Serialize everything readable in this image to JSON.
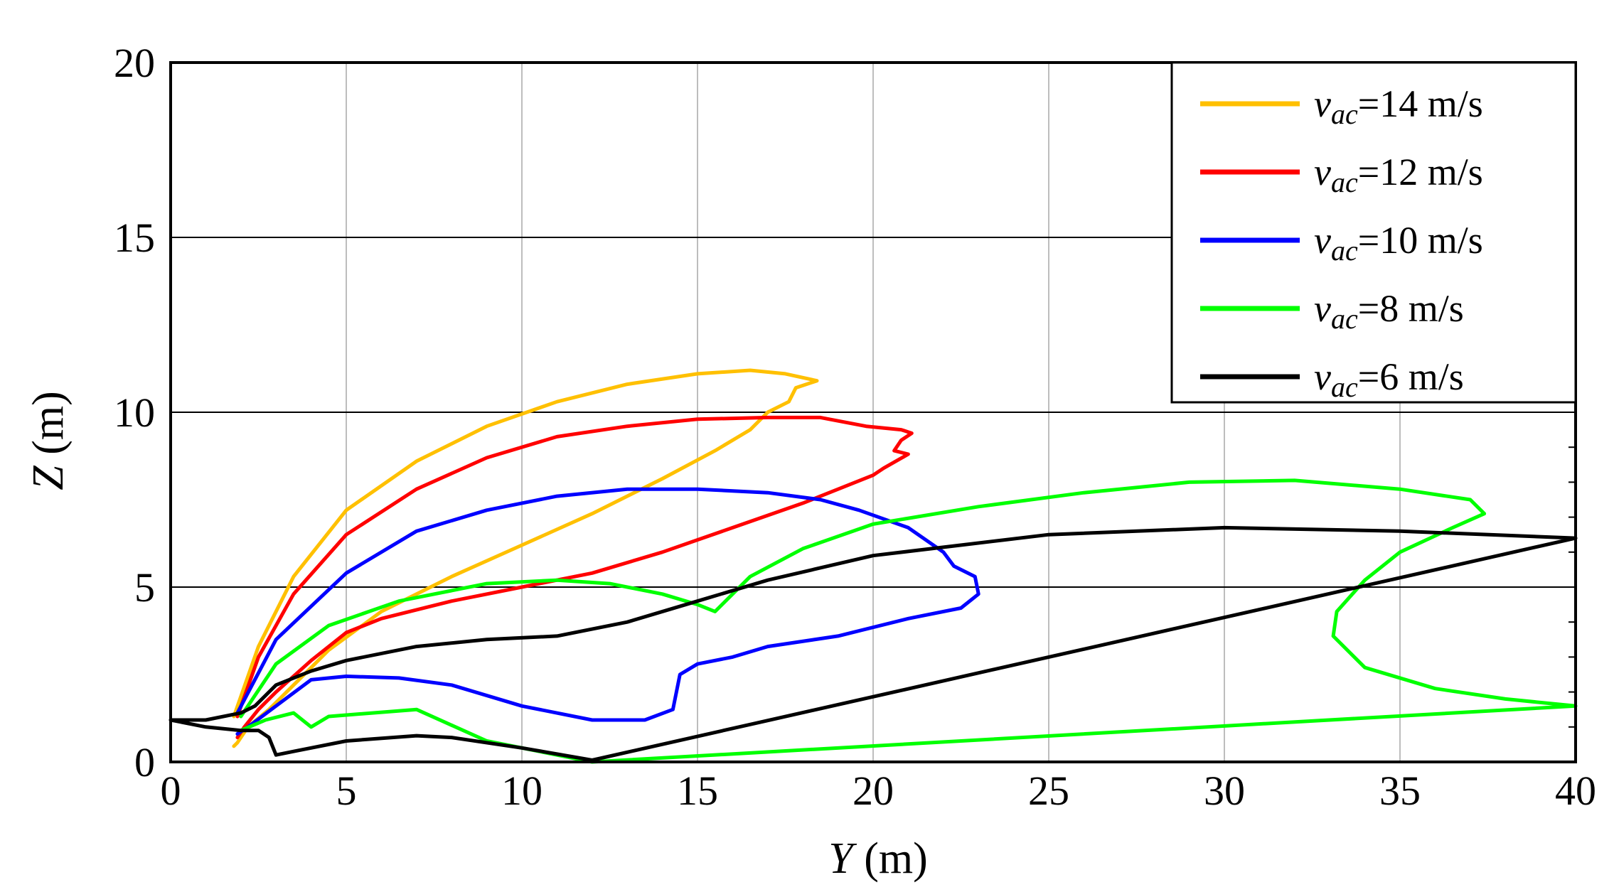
{
  "chart_data": {
    "type": "line",
    "title": "",
    "xlabel": {
      "var": "Y",
      "unit": " (m)"
    },
    "ylabel": {
      "var": "Z",
      "unit": " (m)"
    },
    "xlim": [
      0,
      40
    ],
    "ylim": [
      0,
      20
    ],
    "x_ticks": [
      "0",
      "5",
      "10",
      "15",
      "20",
      "25",
      "30",
      "35",
      "40"
    ],
    "y_ticks": [
      "0",
      "5",
      "10",
      "15",
      "20"
    ],
    "grid": {
      "vertical": "light gray",
      "horizontal": "black"
    },
    "legend_position": "top-right",
    "series": [
      {
        "name": "v_ac=14 m/s",
        "legend": {
          "sym": "v",
          "sub": "ac",
          "rest": "=14 m/s"
        },
        "color": "#ffc000",
        "x": [
          1.8,
          2.5,
          3.5,
          5,
          7,
          9,
          11,
          13,
          15,
          16.5,
          17.5,
          18.4,
          17.8,
          17.6,
          17,
          16.5,
          15.5,
          14,
          12,
          10,
          8,
          6,
          4.5,
          3.5,
          2.8,
          2.2,
          1.9,
          1.8
        ],
        "y": [
          1.3,
          3.3,
          5.3,
          7.2,
          8.6,
          9.6,
          10.3,
          10.8,
          11.1,
          11.2,
          11.1,
          10.9,
          10.7,
          10.3,
          10.0,
          9.5,
          8.9,
          8.1,
          7.1,
          6.2,
          5.3,
          4.3,
          3.2,
          2.2,
          1.5,
          1.0,
          0.55,
          0.45
        ]
      },
      {
        "name": "v_ac=12 m/s",
        "legend": {
          "sym": "v",
          "sub": "ac",
          "rest": "=12 m/s"
        },
        "color": "#ff0000",
        "x": [
          1.9,
          2.5,
          3.5,
          5,
          7,
          9,
          11,
          13,
          15,
          17,
          18.5,
          19.8,
          20.8,
          21.1,
          20.8,
          20.6,
          21,
          20.3,
          20,
          18,
          16,
          14,
          12,
          10,
          8,
          6,
          5,
          4,
          3,
          2.5,
          2.1,
          1.9
        ],
        "y": [
          1.3,
          3.0,
          4.8,
          6.5,
          7.8,
          8.7,
          9.3,
          9.6,
          9.8,
          9.85,
          9.85,
          9.6,
          9.5,
          9.4,
          9.2,
          8.9,
          8.8,
          8.4,
          8.2,
          7.4,
          6.7,
          6.0,
          5.4,
          5.0,
          4.6,
          4.1,
          3.7,
          2.9,
          2.0,
          1.5,
          1.0,
          0.7
        ]
      },
      {
        "name": "v_ac=10 m/s",
        "legend": {
          "sym": "v",
          "sub": "ac",
          "rest": "=10 m/s"
        },
        "color": "#0000ff",
        "x": [
          1.9,
          3,
          5,
          7,
          9,
          11,
          13,
          15,
          17,
          18.5,
          19.6,
          21,
          22,
          22.3,
          22.9,
          23,
          22.5,
          21,
          19,
          17,
          16,
          15,
          14.5,
          14.3,
          13.5,
          12,
          10,
          8,
          6.5,
          5,
          4,
          3,
          2.2,
          1.9
        ],
        "y": [
          1.4,
          3.5,
          5.4,
          6.6,
          7.2,
          7.6,
          7.8,
          7.8,
          7.7,
          7.5,
          7.2,
          6.7,
          6.0,
          5.6,
          5.3,
          4.8,
          4.4,
          4.1,
          3.6,
          3.3,
          3.0,
          2.8,
          2.5,
          1.5,
          1.2,
          1.2,
          1.6,
          2.2,
          2.4,
          2.45,
          2.35,
          1.6,
          1.0,
          0.8
        ]
      },
      {
        "name": "v_ac=8 m/s",
        "legend": {
          "sym": "v",
          "sub": "ac",
          "rest": "=8 m/s"
        },
        "color": "#00ff00",
        "x": [
          2,
          3,
          4.5,
          6.5,
          9,
          11,
          12.5,
          14,
          15,
          15.5,
          16.5,
          18,
          20,
          23,
          26,
          29,
          32,
          35,
          37,
          37.4,
          36.5,
          35,
          34,
          33.2,
          33.1,
          34,
          36,
          38,
          40,
          12,
          9,
          7,
          4.5,
          4,
          3.5,
          2.7,
          2
        ],
        "y": [
          1.3,
          2.8,
          3.9,
          4.6,
          5.1,
          5.2,
          5.1,
          4.8,
          4.5,
          4.3,
          5.3,
          6.1,
          6.8,
          7.3,
          7.7,
          8.0,
          8.05,
          7.8,
          7.5,
          7.1,
          6.7,
          6.0,
          5.2,
          4.3,
          3.6,
          2.7,
          2.1,
          1.8,
          1.6,
          0.0,
          0.6,
          1.5,
          1.3,
          1.0,
          1.4,
          1.2,
          0.9
        ]
      },
      {
        "name": "v_ac=6 m/s",
        "legend": {
          "sym": "v",
          "sub": "ac",
          "rest": "=6 m/s"
        },
        "color": "#000000",
        "x": [
          0,
          1,
          2,
          2.4,
          3,
          4,
          5,
          7,
          9,
          11,
          13,
          15,
          17,
          20,
          25,
          30,
          35,
          40,
          12,
          10,
          8,
          7,
          5,
          3.5,
          3,
          2.8,
          2.5,
          2,
          1,
          0
        ],
        "y": [
          1.2,
          1.2,
          1.4,
          1.6,
          2.2,
          2.6,
          2.9,
          3.3,
          3.5,
          3.6,
          4.0,
          4.6,
          5.2,
          5.9,
          6.5,
          6.7,
          6.6,
          6.4,
          0.05,
          0.4,
          0.7,
          0.75,
          0.6,
          0.3,
          0.2,
          0.7,
          0.9,
          0.9,
          1.0,
          1.2
        ]
      }
    ]
  }
}
